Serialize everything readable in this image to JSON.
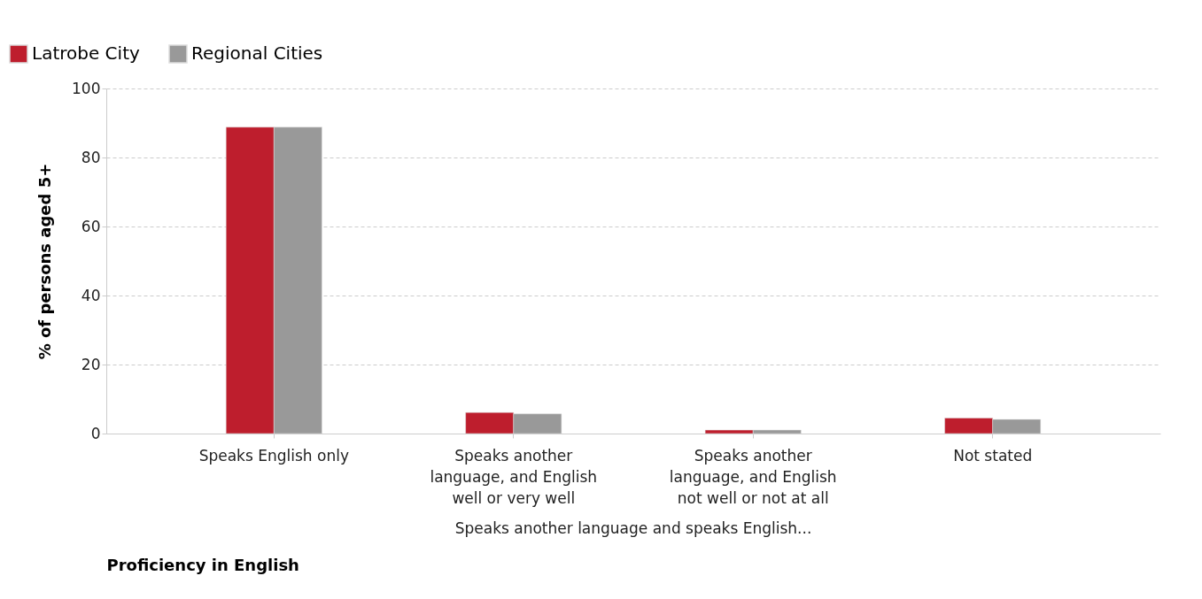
{
  "chart_data": {
    "type": "bar",
    "categories": [
      "Speaks English only",
      "Speaks another language, and English well or very well",
      "Speaks another language, and English not well or not at all",
      "Not stated"
    ],
    "series": [
      {
        "name": "Latrobe City",
        "color": "#be1e2d",
        "values": [
          88.8,
          6.1,
          1.0,
          4.5
        ]
      },
      {
        "name": "Regional Cities",
        "color": "#999999",
        "values": [
          88.8,
          5.7,
          1.0,
          4.1
        ]
      }
    ],
    "ylim": [
      0,
      100
    ],
    "yticks": [
      0,
      20,
      40,
      60,
      80,
      100
    ],
    "grid": "y",
    "ylabel": "% of persons aged 5+",
    "xlabel": "Proficiency in English",
    "annotations": [
      "Speaks another language and speaks English..."
    ],
    "legend": "top left"
  }
}
